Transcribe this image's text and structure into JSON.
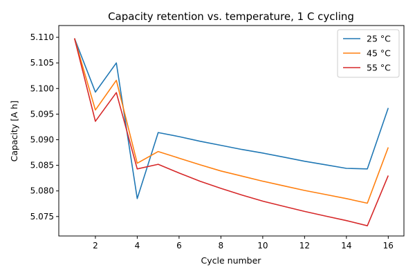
{
  "chart_data": {
    "type": "line",
    "title": "Capacity retention vs. temperature, 1 C cycling",
    "xlabel": "Cycle number",
    "ylabel": "Capacity [A h]",
    "xlim": [
      0.25,
      16.75
    ],
    "ylim": [
      5.0712,
      5.1123
    ],
    "xticks": [
      2,
      4,
      6,
      8,
      10,
      12,
      14,
      16
    ],
    "yticks": [
      5.075,
      5.08,
      5.085,
      5.09,
      5.095,
      5.1,
      5.105,
      5.11
    ],
    "ytick_labels": [
      "5.075",
      "5.080",
      "5.085",
      "5.090",
      "5.095",
      "5.100",
      "5.105",
      "5.110"
    ],
    "grid": false,
    "legend_position": "top-right",
    "x": [
      1,
      2,
      3,
      4,
      5,
      6,
      7,
      8,
      9,
      10,
      11,
      12,
      13,
      14,
      15,
      16
    ],
    "series": [
      {
        "name": "25 °C",
        "color": "#1f77b4",
        "values": [
          5.1098,
          5.0993,
          5.105,
          5.0785,
          5.0914,
          5.0906,
          5.0897,
          5.0889,
          5.0881,
          5.0874,
          5.0866,
          5.0858,
          5.0851,
          5.0844,
          5.0843,
          5.0962
        ]
      },
      {
        "name": "45 °C",
        "color": "#ff7f0e",
        "values": [
          5.1098,
          5.0958,
          5.1016,
          5.0854,
          5.0877,
          5.0864,
          5.0851,
          5.0839,
          5.0829,
          5.0819,
          5.081,
          5.0801,
          5.0793,
          5.0785,
          5.0776,
          5.0885
        ]
      },
      {
        "name": "55 °C",
        "color": "#d62728",
        "values": [
          5.1098,
          5.0936,
          5.0992,
          5.0843,
          5.0852,
          5.0835,
          5.0819,
          5.0805,
          5.0792,
          5.078,
          5.077,
          5.076,
          5.0751,
          5.0742,
          5.0732,
          5.083
        ]
      }
    ]
  }
}
